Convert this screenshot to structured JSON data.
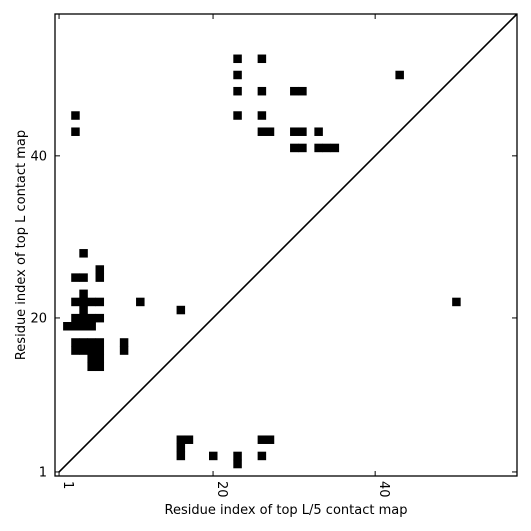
{
  "chart_data": {
    "type": "heatmap",
    "title": "",
    "xlabel": "Residue index of top L/5 contact map",
    "ylabel": "Residue index of top L contact map",
    "xlim": [
      1,
      57
    ],
    "ylim": [
      1,
      57
    ],
    "grid": false,
    "x_ticks": [
      1,
      20,
      40
    ],
    "y_ticks": [
      1,
      20,
      40
    ],
    "x_tick_labels": [
      "1",
      "20",
      "40"
    ],
    "y_tick_labels": [
      "1",
      "20",
      "40"
    ],
    "diagonal": true,
    "contact_color": "#000000",
    "upper_cells": [
      [
        23,
        52
      ],
      [
        26,
        52
      ],
      [
        23,
        50
      ],
      [
        43,
        50
      ],
      [
        23,
        48
      ],
      [
        26,
        48
      ],
      [
        30,
        48
      ],
      [
        31,
        48
      ],
      [
        3,
        45
      ],
      [
        23,
        45
      ],
      [
        26,
        45
      ],
      [
        3,
        43
      ],
      [
        26,
        43
      ],
      [
        27,
        43
      ],
      [
        30,
        43
      ],
      [
        31,
        43
      ],
      [
        33,
        43
      ],
      [
        30,
        41
      ],
      [
        31,
        41
      ],
      [
        33,
        41
      ],
      [
        34,
        41
      ],
      [
        35,
        41
      ],
      [
        4,
        28
      ],
      [
        3,
        25
      ],
      [
        4,
        25
      ],
      [
        6,
        25
      ],
      [
        6,
        26
      ],
      [
        4,
        23
      ],
      [
        3,
        22
      ],
      [
        4,
        22
      ],
      [
        5,
        22
      ],
      [
        6,
        22
      ],
      [
        11,
        22
      ],
      [
        50,
        22
      ],
      [
        4,
        21
      ],
      [
        16,
        21
      ],
      [
        3,
        20
      ],
      [
        4,
        20
      ],
      [
        5,
        20
      ],
      [
        6,
        20
      ],
      [
        2,
        19
      ],
      [
        3,
        19
      ],
      [
        4,
        19
      ],
      [
        5,
        19
      ],
      [
        3,
        17
      ],
      [
        4,
        17
      ],
      [
        5,
        17
      ],
      [
        6,
        17
      ],
      [
        9,
        17
      ],
      [
        3,
        16
      ],
      [
        4,
        16
      ],
      [
        5,
        16
      ],
      [
        6,
        16
      ],
      [
        9,
        16
      ],
      [
        5,
        15
      ],
      [
        6,
        15
      ],
      [
        5,
        14
      ],
      [
        6,
        14
      ]
    ],
    "lower_cells": [
      [
        16,
        5
      ],
      [
        17,
        5
      ],
      [
        26,
        5
      ],
      [
        27,
        5
      ],
      [
        16,
        4
      ],
      [
        16,
        3
      ],
      [
        20,
        3
      ],
      [
        23,
        3
      ],
      [
        26,
        3
      ],
      [
        23,
        2
      ]
    ]
  }
}
